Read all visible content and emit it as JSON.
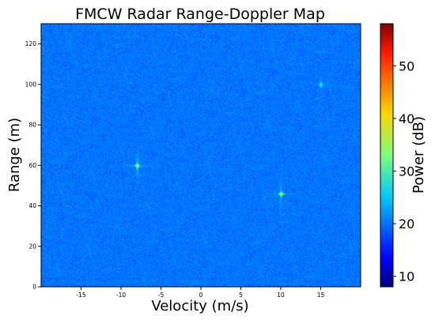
{
  "chart_data": {
    "type": "heatmap",
    "title": "FMCW Radar Range-Doppler Map",
    "xlabel": "Velocity (m/s)",
    "ylabel": "Range (m)",
    "xlim": [
      -20,
      20
    ],
    "ylim": [
      0,
      130
    ],
    "x_ticks": [
      -15,
      -10,
      -5,
      0,
      5,
      10,
      15
    ],
    "y_ticks": [
      0,
      20,
      40,
      60,
      80,
      100,
      120
    ],
    "colorbar": {
      "label": "Power (dB)",
      "range": [
        8,
        58
      ],
      "ticks": [
        10,
        20,
        30,
        40,
        50
      ],
      "colormap": "jet"
    },
    "background_level_db": 20,
    "targets": [
      {
        "velocity": -8,
        "range": 60,
        "power_db": 35
      },
      {
        "velocity": 10,
        "range": 46,
        "power_db": 35
      },
      {
        "velocity": 15,
        "range": 100,
        "power_db": 26
      }
    ],
    "grid": false
  }
}
